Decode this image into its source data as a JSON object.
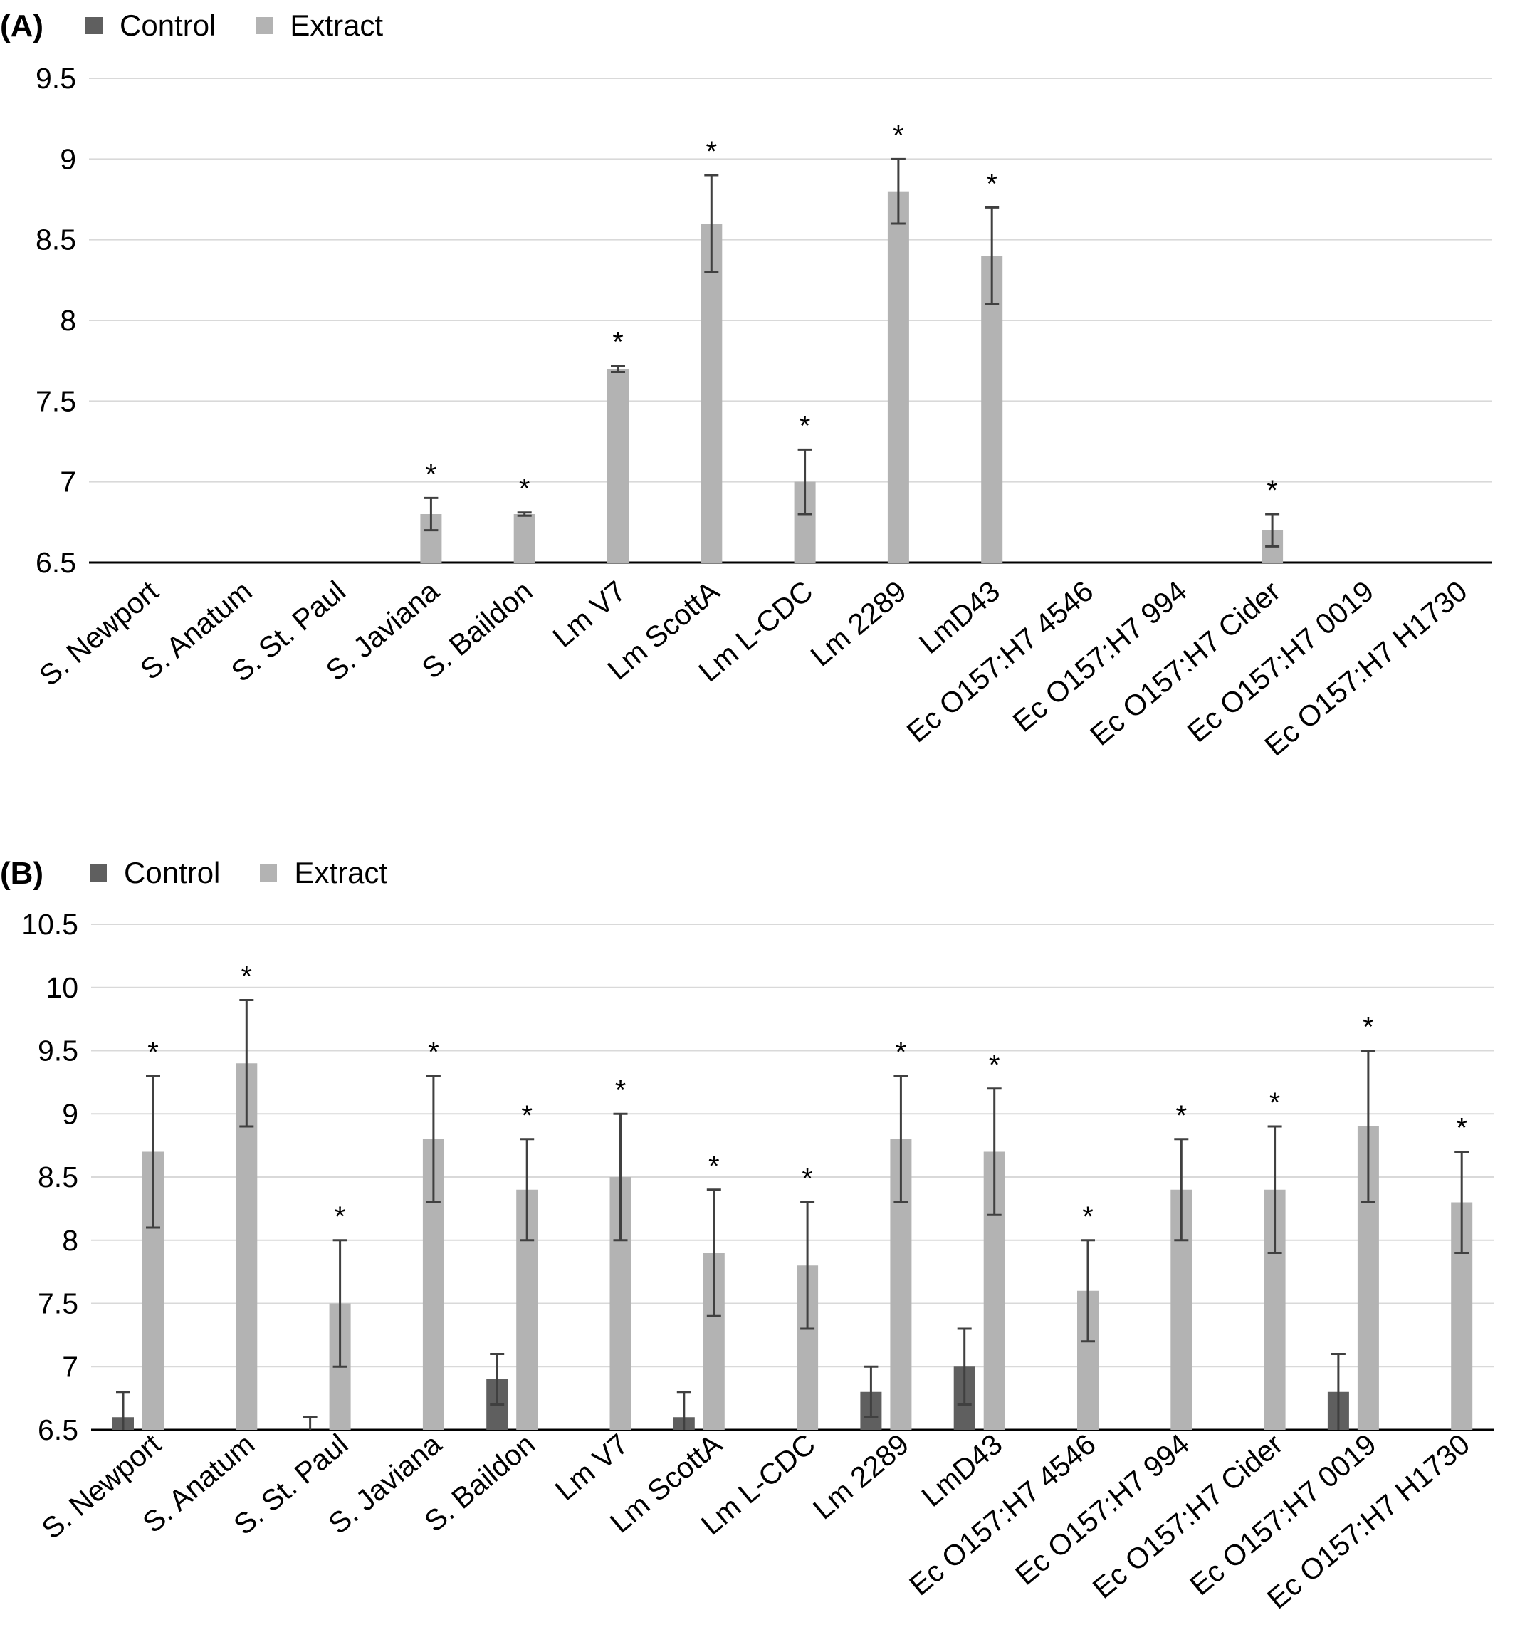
{
  "colors": {
    "control": "#5f5f5f",
    "extract": "#b3b3b3",
    "grid": "#d9d9d9",
    "axis": "#000000",
    "error": "#404040"
  },
  "legend": {
    "control": "Control",
    "extract": "Extract"
  },
  "chart_data": [
    {
      "panel": "(A)",
      "type": "bar",
      "categories": [
        "S. Newport",
        "S. Anatum",
        "S. St. Paul",
        "S. Javiana",
        "S. Baildon",
        "Lm V7",
        "Lm ScottA",
        "Lm L-CDC",
        "Lm  2289",
        "LmD43",
        "Ec O157:H7 4546",
        "Ec O157:H7 994",
        "Ec O157:H7 Cider",
        "Ec O157:H7 0019",
        "Ec O157:H7 H1730"
      ],
      "ylim": [
        6.5,
        9.5
      ],
      "yticks": [
        "6.5",
        "7",
        "7.5",
        "8",
        "8.5",
        "9",
        "9.5"
      ],
      "grid": true,
      "legend_position": "top-left",
      "series": [
        {
          "name": "Control",
          "values": [
            null,
            null,
            null,
            null,
            null,
            null,
            null,
            null,
            null,
            null,
            null,
            null,
            null,
            null,
            null
          ],
          "errors": [
            null,
            null,
            null,
            null,
            null,
            null,
            null,
            null,
            null,
            null,
            null,
            null,
            null,
            null,
            null
          ]
        },
        {
          "name": "Extract",
          "values": [
            null,
            null,
            null,
            6.8,
            6.8,
            7.7,
            8.6,
            7.0,
            8.8,
            8.4,
            null,
            null,
            6.7,
            null,
            null
          ],
          "errors": [
            null,
            null,
            null,
            0.1,
            0.01,
            0.02,
            0.3,
            0.2,
            0.2,
            0.3,
            null,
            null,
            0.1,
            null,
            null
          ]
        }
      ],
      "significance": [
        false,
        false,
        false,
        true,
        true,
        true,
        true,
        true,
        true,
        true,
        false,
        false,
        true,
        false,
        false
      ],
      "significance_mark": "*"
    },
    {
      "panel": "(B)",
      "type": "bar",
      "categories": [
        "S. Newport",
        "S. Anatum",
        "S. St. Paul",
        "S. Javiana",
        "S. Baildon",
        "Lm V7",
        "Lm ScottA",
        "Lm L-CDC",
        "Lm  2289",
        "LmD43",
        "Ec O157:H7 4546",
        "Ec O157:H7 994",
        "Ec O157:H7 Cider",
        "Ec O157:H7 0019",
        "Ec O157:H7 H1730"
      ],
      "ylim": [
        6.5,
        10.5
      ],
      "yticks": [
        "6.5",
        "7",
        "7.5",
        "8",
        "8.5",
        "9",
        "9.5",
        "10",
        "10.5"
      ],
      "grid": true,
      "legend_position": "top-left",
      "series": [
        {
          "name": "Control",
          "values": [
            6.6,
            null,
            6.5,
            null,
            6.9,
            null,
            6.6,
            null,
            6.8,
            7.0,
            null,
            null,
            null,
            6.8,
            null
          ],
          "errors": [
            0.2,
            null,
            0.1,
            null,
            0.2,
            null,
            0.2,
            null,
            0.2,
            0.3,
            null,
            null,
            null,
            0.3,
            null
          ]
        },
        {
          "name": "Extract",
          "values": [
            8.7,
            9.4,
            7.5,
            8.8,
            8.4,
            8.5,
            7.9,
            7.8,
            8.8,
            8.7,
            7.6,
            8.4,
            8.4,
            8.9,
            8.3
          ],
          "errors": [
            0.6,
            0.5,
            0.5,
            0.5,
            0.4,
            0.5,
            0.5,
            0.5,
            0.5,
            0.5,
            0.4,
            0.4,
            0.5,
            0.6,
            0.4
          ]
        }
      ],
      "significance": [
        true,
        true,
        true,
        true,
        true,
        true,
        true,
        true,
        true,
        true,
        true,
        true,
        true,
        true,
        true
      ],
      "significance_mark": "*"
    }
  ]
}
